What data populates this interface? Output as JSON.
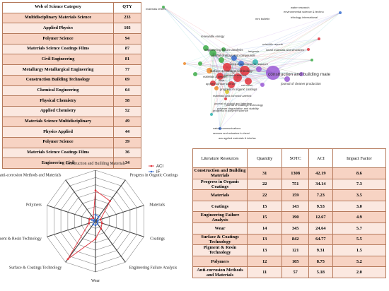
{
  "wos_table": {
    "headers": [
      "Web of Science Category",
      "QTY"
    ],
    "rows": [
      [
        "Multidisciplinary Materials Science",
        "233"
      ],
      [
        "Applied Physics",
        "103"
      ],
      [
        "Polymer Science",
        "94"
      ],
      [
        "Materials Science Coatings Films",
        "87"
      ],
      [
        "Civil Engineering",
        "81"
      ],
      [
        "Metallurgy Metallurgical Engineering",
        "77"
      ],
      [
        "Construction Building Technology",
        "69"
      ],
      [
        "Chemical Engineering",
        "64"
      ],
      [
        "Physical Chemistry",
        "58"
      ],
      [
        "Applied Chemistry",
        "52"
      ],
      [
        "Materials Science Multidisciplinary",
        "49"
      ],
      [
        "Physics Applied",
        "44"
      ],
      [
        "Polymer Science",
        "39"
      ],
      [
        "Materials Science Coatings Films",
        "36"
      ],
      [
        "Engineering Civil",
        "34"
      ]
    ]
  },
  "lit_table": {
    "headers": [
      "Literature Resources",
      "Quantity",
      "SOTC",
      "ACI",
      "Impact Factor"
    ],
    "rows": [
      [
        "Construction and Building Materials",
        "31",
        "1308",
        "42.19",
        "8.6"
      ],
      [
        "Progress in Organic Coatings",
        "22",
        "751",
        "34.14",
        "7.3"
      ],
      [
        "Materials",
        "22",
        "159",
        "7.23",
        "3.5"
      ],
      [
        "Coatings",
        "15",
        "143",
        "9.53",
        "3.0"
      ],
      [
        "Engineering Failure Analysis",
        "15",
        "190",
        "12.67",
        "4.9"
      ],
      [
        "Wear",
        "14",
        "345",
        "24.64",
        "5.7"
      ],
      [
        "Surface & Coatings Technology",
        "13",
        "842",
        "64.77",
        "5.5"
      ],
      [
        "Pigment & Resin Technology",
        "13",
        "121",
        "9.31",
        "1.5"
      ],
      [
        "Polymers",
        "12",
        "105",
        "8.75",
        "5.2"
      ],
      [
        "Anti-corrosion Methods and Materials",
        "11",
        "57",
        "5.18",
        "2.0"
      ]
    ]
  },
  "network": {
    "labels": [
      "materials letters",
      "water research",
      "environmental science & techno",
      "tribology international",
      "mrs bulletin",
      "renewable energy",
      "engineering failure analysis",
      "journal of alloys and compounds",
      "construction and building mate",
      "journal of cleaner production",
      "scientific reports",
      "smart materials and structures",
      "surface & coatings technology",
      "wear",
      "corrosion science",
      "materials & design",
      "progress in organic coatings",
      "cement and concrete research",
      "applied surface science",
      "materials and corrosion-werkst",
      "journal of colloid and interface",
      "polymer degradation and stability",
      "journal of coatings technology",
      "progress in polymer science",
      "nature communications",
      "sensors and actuators b-chemi",
      "acs applied materials & interfac",
      "langmuir",
      "corrosion"
    ],
    "colors": {
      "red": "#e0303a",
      "green": "#3fae4a",
      "blue": "#3a6fd0",
      "purple": "#9a5bd6",
      "teal": "#2fb5b0",
      "orange": "#f08a2a",
      "yellow": "#d8c72c"
    }
  },
  "chart_data": {
    "type": "radar",
    "categories": [
      "Construction and Building Materials",
      "Progress in Organic Coatings",
      "Materials",
      "Coatings",
      "Engineering Failure Analysis",
      "Wear",
      "Surface & Coatings Technology",
      "Pigment & Resin Technology",
      "Polymers",
      "Anti-corrosion Methods and Materials"
    ],
    "series": [
      {
        "name": "ACI",
        "values": [
          42.19,
          34.14,
          7.23,
          9.53,
          12.67,
          24.64,
          64.77,
          9.31,
          8.75,
          5.18
        ],
        "color": "#e0303a"
      },
      {
        "name": "IF",
        "values": [
          8.6,
          7.3,
          3.5,
          3.0,
          4.9,
          5.7,
          5.5,
          1.5,
          5.2,
          2.0
        ],
        "color": "#3a6fd0"
      }
    ],
    "rlim": [
      0,
      70
    ],
    "legend": "top-right"
  }
}
